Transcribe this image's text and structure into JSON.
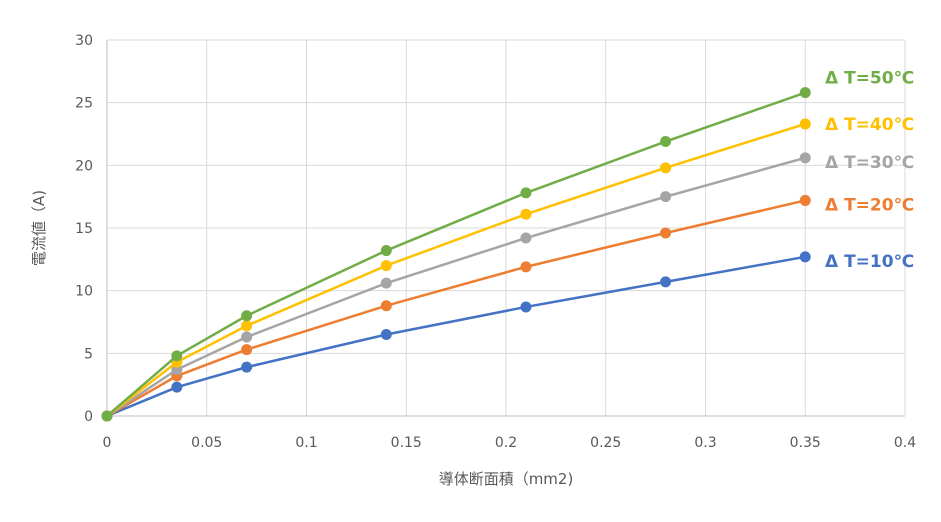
{
  "chart_data": {
    "type": "line",
    "title": "",
    "xlabel": "導体断面積（mm2)",
    "ylabel": "電流値（A)",
    "xlim": [
      0,
      0.4
    ],
    "ylim": [
      0,
      30
    ],
    "x_ticks": [
      "0",
      "0.05",
      "0.1",
      "0.15",
      "0.2",
      "0.25",
      "0.3",
      "0.35",
      "0.4"
    ],
    "y_ticks": [
      "0",
      "5",
      "10",
      "15",
      "20",
      "25",
      "30"
    ],
    "grid": true,
    "x": [
      0,
      0.035,
      0.07,
      0.14,
      0.21,
      0.28,
      0.35
    ],
    "series": [
      {
        "name": "Δ T=10℃",
        "color": "#4472c4",
        "values": [
          0,
          2.3,
          3.9,
          6.5,
          8.7,
          10.7,
          12.7
        ]
      },
      {
        "name": "Δ T=20℃",
        "color": "#ed7d31",
        "values": [
          0,
          3.2,
          5.3,
          8.8,
          11.9,
          14.6,
          17.2
        ]
      },
      {
        "name": "Δ T=30℃",
        "color": "#a5a5a5",
        "values": [
          0,
          3.7,
          6.3,
          10.6,
          14.2,
          17.5,
          20.6
        ]
      },
      {
        "name": "Δ T=40℃",
        "color": "#ffc000",
        "values": [
          0,
          4.3,
          7.2,
          12.0,
          16.1,
          19.8,
          23.3
        ]
      },
      {
        "name": "Δ T=50℃",
        "color": "#70ad47",
        "values": [
          0,
          4.8,
          8.0,
          13.2,
          17.8,
          21.9,
          25.8
        ]
      }
    ]
  }
}
